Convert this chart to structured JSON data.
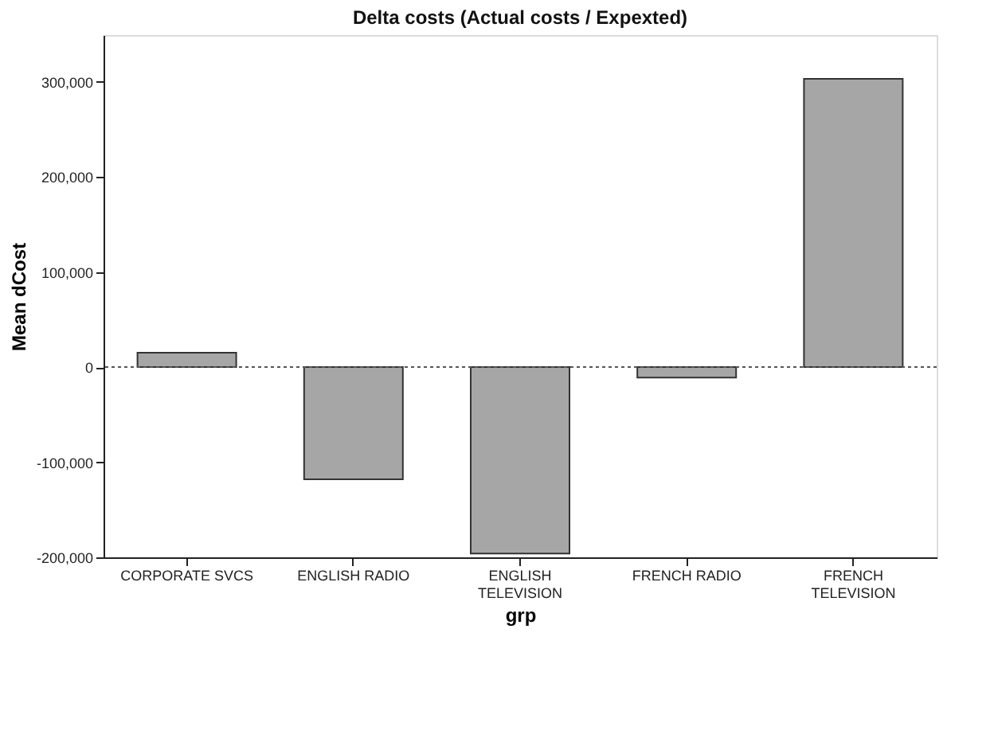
{
  "chart_data": {
    "type": "bar",
    "title": "Delta costs (Actual costs / Expexted)",
    "xlabel": "grp",
    "ylabel": "Mean dCost",
    "categories": [
      "CORPORATE SVCS",
      "ENGLISH RADIO",
      "ENGLISH TELEVISION",
      "FRENCH RADIO",
      "FRENCH TELEVISION"
    ],
    "values": [
      15000,
      -118000,
      -196000,
      -11000,
      303000
    ],
    "color": "#a6a6a6",
    "ylim": [
      -200000,
      349000
    ],
    "yticks": [
      {
        "value": -200000,
        "label": "-200,000"
      },
      {
        "value": -100000,
        "label": "-100,000"
      },
      0,
      {
        "value": 100000,
        "label": "100,000"
      },
      {
        "value": 200000,
        "label": "200,000"
      },
      {
        "value": 300000,
        "label": "300,000"
      }
    ],
    "ref_lines": [
      {
        "axis": "y",
        "value": 0,
        "label": null,
        "color": "#555555",
        "line_style": "dotted"
      }
    ],
    "grid": false
  }
}
